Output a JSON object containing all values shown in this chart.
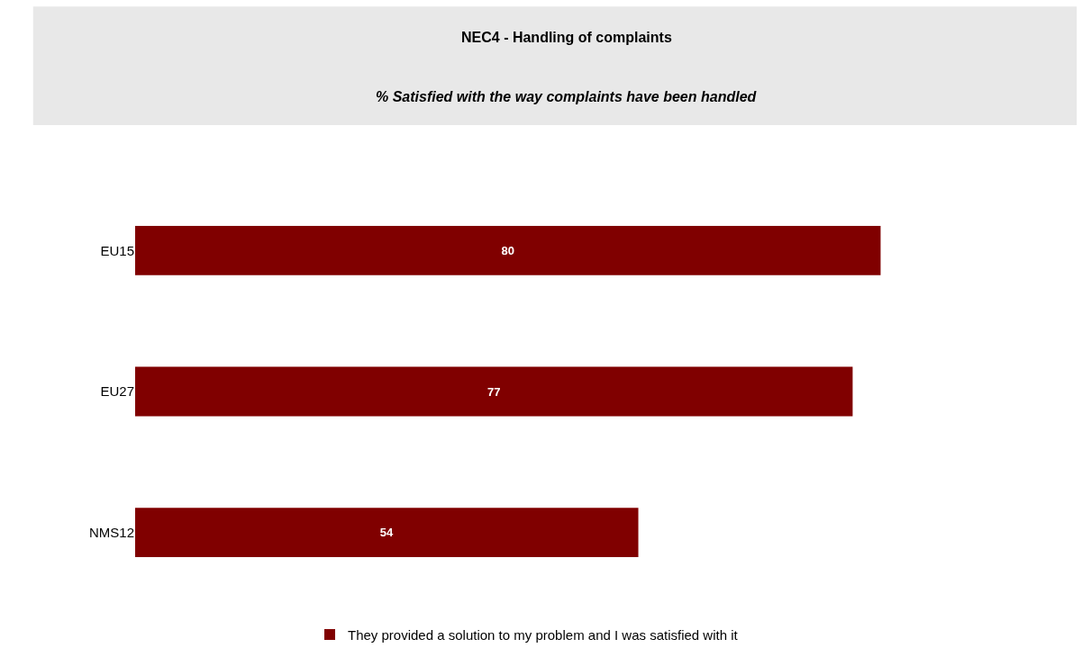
{
  "chart_data": {
    "type": "bar",
    "orientation": "horizontal",
    "title": "NEC4 - Handling of complaints",
    "subtitle": "% Satisfied with the way complaints have been handled",
    "categories": [
      "EU15",
      "EU27",
      "NMS12"
    ],
    "series": [
      {
        "name": "They provided a solution to my problem and I was satisfied with it",
        "color": "#800000",
        "values": [
          80,
          77,
          54
        ]
      }
    ],
    "data_labels": true,
    "legend": "bottom"
  }
}
